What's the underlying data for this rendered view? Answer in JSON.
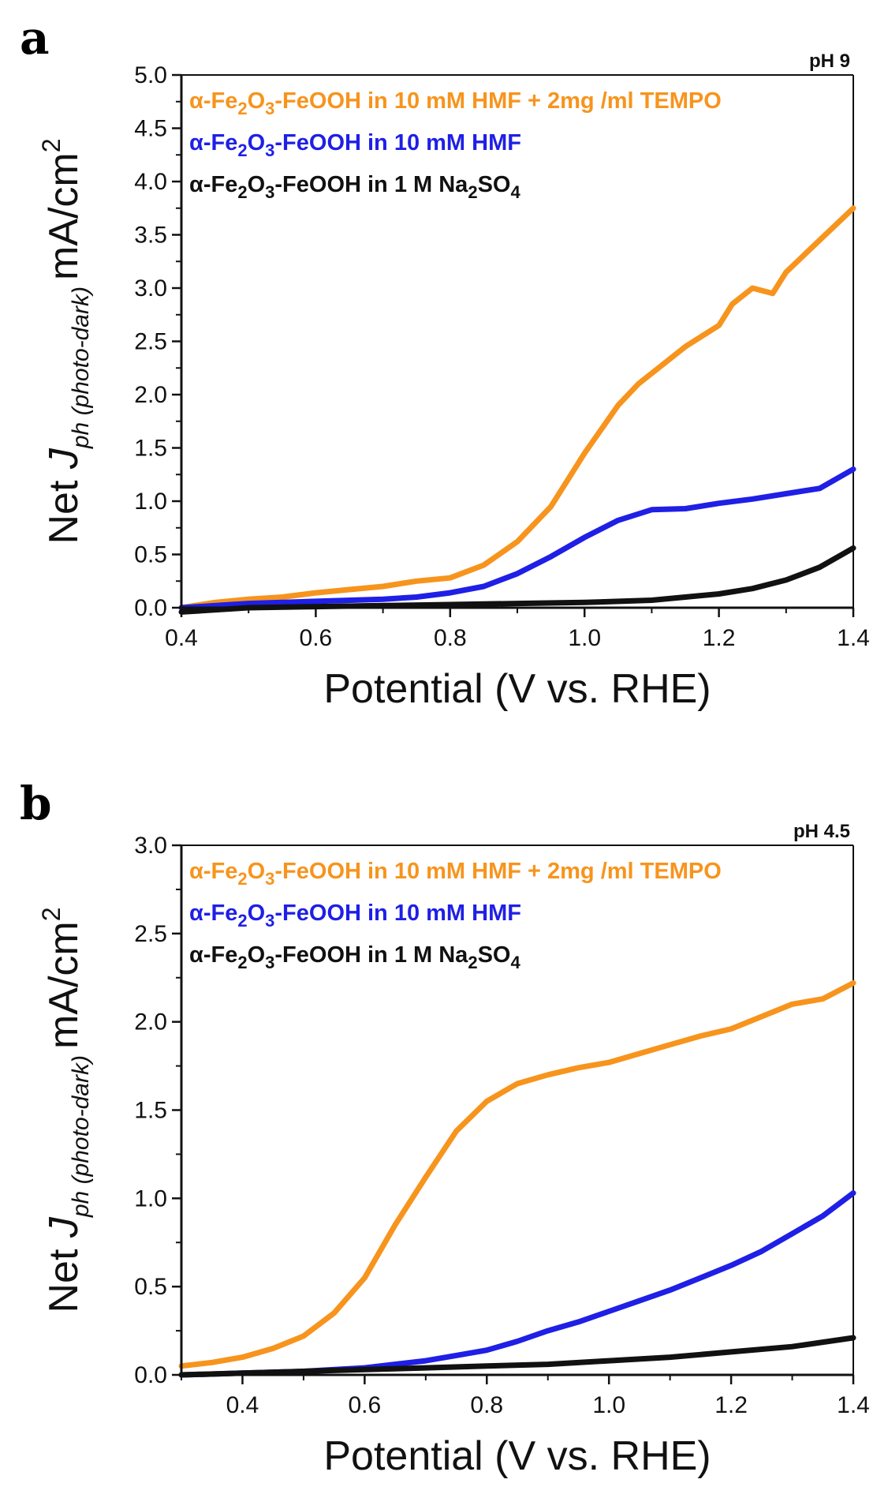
{
  "chart_data": [
    {
      "type": "line",
      "panel_label": "a",
      "annotation": "pH 9",
      "xlabel": "Potential (V vs. RHE)",
      "ylabel": {
        "prefix": "Net ",
        "J": "J",
        "subscript": "ph (photo-dark)",
        "unit": "mA/cm",
        "sup": "2"
      },
      "xlim": [
        0.4,
        1.4
      ],
      "ylim": [
        0.0,
        5.0
      ],
      "xticks": [
        "0.4",
        "0.6",
        "0.8",
        "1.0",
        "1.2",
        "1.4"
      ],
      "yticks": [
        "0.0",
        "0.5",
        "1.0",
        "1.5",
        "2.0",
        "2.5",
        "3.0",
        "3.5",
        "4.0",
        "4.5",
        "5.0"
      ],
      "legend_position": "top-left",
      "series": [
        {
          "name": "α-Fe2O3-FeOOH in 10 mM HMF + 2mg /ml TEMPO",
          "color": "#F7941D",
          "legend": {
            "a": "α-Fe",
            "s1": "2",
            "b": "O",
            "s2": "3",
            "c": "-FeOOH in 10 mM HMF + 2mg /ml TEMPO"
          },
          "x": [
            0.4,
            0.45,
            0.5,
            0.55,
            0.6,
            0.65,
            0.7,
            0.75,
            0.8,
            0.85,
            0.9,
            0.95,
            1.0,
            1.05,
            1.08,
            1.1,
            1.15,
            1.2,
            1.22,
            1.25,
            1.28,
            1.3,
            1.35,
            1.4
          ],
          "y": [
            0.0,
            0.05,
            0.08,
            0.1,
            0.14,
            0.17,
            0.2,
            0.25,
            0.28,
            0.4,
            0.62,
            0.95,
            1.45,
            1.9,
            2.1,
            2.2,
            2.45,
            2.65,
            2.85,
            3.0,
            2.95,
            3.15,
            3.45,
            3.75
          ]
        },
        {
          "name": "α-Fe2O3-FeOOH in 10 mM HMF",
          "color": "#1F1FE6",
          "legend": {
            "a": "α-Fe",
            "s1": "2",
            "b": "O",
            "s2": "3",
            "c": "-FeOOH in 10 mM HMF"
          },
          "x": [
            0.4,
            0.5,
            0.6,
            0.7,
            0.75,
            0.8,
            0.85,
            0.9,
            0.95,
            1.0,
            1.05,
            1.1,
            1.15,
            1.2,
            1.25,
            1.3,
            1.35,
            1.4
          ],
          "y": [
            0.0,
            0.04,
            0.06,
            0.08,
            0.1,
            0.14,
            0.2,
            0.32,
            0.48,
            0.66,
            0.82,
            0.92,
            0.93,
            0.98,
            1.02,
            1.07,
            1.12,
            1.3
          ]
        },
        {
          "name": "α-Fe2O3-FeOOH in 1 M Na2SO4",
          "color": "#111111",
          "legend": {
            "a": "α-Fe",
            "s1": "2",
            "b": "O",
            "s2": "3",
            "c": "-FeOOH in 1 M Na",
            "s3": "2",
            "d": "SO",
            "s4": "4"
          },
          "x": [
            0.4,
            0.5,
            0.6,
            0.7,
            0.8,
            0.9,
            1.0,
            1.1,
            1.15,
            1.2,
            1.25,
            1.3,
            1.35,
            1.4
          ],
          "y": [
            -0.04,
            0.0,
            0.01,
            0.02,
            0.03,
            0.04,
            0.05,
            0.07,
            0.1,
            0.13,
            0.18,
            0.26,
            0.38,
            0.56
          ]
        }
      ]
    },
    {
      "type": "line",
      "panel_label": "b",
      "annotation": "pH 4.5",
      "xlabel": "Potential (V vs. RHE)",
      "ylabel": {
        "prefix": "Net ",
        "J": "J",
        "subscript": "ph (photo-dark)",
        "unit": "mA/cm",
        "sup": "2"
      },
      "xlim": [
        0.3,
        1.4
      ],
      "ylim": [
        0.0,
        3.0
      ],
      "xticks": [
        "0.4",
        "0.6",
        "0.8",
        "1.0",
        "1.2",
        "1.4"
      ],
      "yticks": [
        "0.0",
        "0.5",
        "1.0",
        "1.5",
        "2.0",
        "2.5",
        "3.0"
      ],
      "legend_position": "top-left",
      "series": [
        {
          "name": "α-Fe2O3-FeOOH in 10 mM HMF + 2mg /ml TEMPO",
          "color": "#F7941D",
          "legend": {
            "a": "α-Fe",
            "s1": "2",
            "b": "O",
            "s2": "3",
            "c": "-FeOOH in 10 mM HMF + 2mg /ml TEMPO"
          },
          "x": [
            0.3,
            0.35,
            0.4,
            0.45,
            0.5,
            0.55,
            0.6,
            0.65,
            0.7,
            0.75,
            0.8,
            0.85,
            0.9,
            0.95,
            1.0,
            1.05,
            1.1,
            1.15,
            1.2,
            1.25,
            1.3,
            1.35,
            1.4
          ],
          "y": [
            0.05,
            0.07,
            0.1,
            0.15,
            0.22,
            0.35,
            0.55,
            0.85,
            1.12,
            1.38,
            1.55,
            1.65,
            1.7,
            1.74,
            1.77,
            1.82,
            1.87,
            1.92,
            1.96,
            2.03,
            2.1,
            2.13,
            2.22
          ]
        },
        {
          "name": "α-Fe2O3-FeOOH in 10 mM HMF",
          "color": "#1F1FE6",
          "legend": {
            "a": "α-Fe",
            "s1": "2",
            "b": "O",
            "s2": "3",
            "c": "-FeOOH in 10 mM HMF"
          },
          "x": [
            0.3,
            0.4,
            0.5,
            0.6,
            0.7,
            0.75,
            0.8,
            0.85,
            0.9,
            0.95,
            1.0,
            1.05,
            1.1,
            1.15,
            1.2,
            1.25,
            1.3,
            1.35,
            1.4
          ],
          "y": [
            0.0,
            0.01,
            0.02,
            0.04,
            0.08,
            0.11,
            0.14,
            0.19,
            0.25,
            0.3,
            0.36,
            0.42,
            0.48,
            0.55,
            0.62,
            0.7,
            0.8,
            0.9,
            1.03
          ]
        },
        {
          "name": "α-Fe2O3-FeOOH in 1 M Na2SO4",
          "color": "#111111",
          "legend": {
            "a": "α-Fe",
            "s1": "2",
            "b": "O",
            "s2": "3",
            "c": "-FeOOH in 1 M Na",
            "s3": "2",
            "d": "SO",
            "s4": "4"
          },
          "x": [
            0.3,
            0.4,
            0.5,
            0.6,
            0.7,
            0.8,
            0.9,
            1.0,
            1.1,
            1.2,
            1.3,
            1.4
          ],
          "y": [
            0.0,
            0.01,
            0.02,
            0.03,
            0.04,
            0.05,
            0.06,
            0.08,
            0.1,
            0.13,
            0.16,
            0.21
          ]
        }
      ]
    }
  ]
}
